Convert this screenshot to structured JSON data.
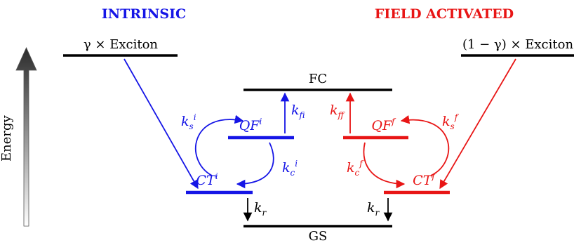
{
  "titles": {
    "intrinsic": "INTRINSIC",
    "field_activated": "FIELD ACTIVATED"
  },
  "levels": {
    "exciton_intrinsic": "γ × Exciton",
    "exciton_field": "(1 − γ) × Exciton",
    "fc": "FC",
    "gs": "GS",
    "energy": "Energy"
  },
  "states": {
    "qf_i": {
      "base": "QF",
      "sup": "i"
    },
    "ct_i": {
      "base": "CT",
      "sup": "i"
    },
    "qf_f": {
      "base": "QF",
      "sup": "f"
    },
    "ct_f": {
      "base": "CT",
      "sup": "f"
    }
  },
  "rates": {
    "ks_i": {
      "base": "k",
      "sub": "s",
      "sup": "i"
    },
    "kf_i": {
      "base": "k",
      "sub": "f",
      "sup": "i"
    },
    "kc_i": {
      "base": "k",
      "sub": "c",
      "sup": "i"
    },
    "ks_f": {
      "base": "k",
      "sub": "s",
      "sup": "f"
    },
    "kf_f": {
      "base": "k",
      "sub": "f",
      "sup": "f"
    },
    "kc_f": {
      "base": "k",
      "sub": "c",
      "sup": "f"
    },
    "kr_left": {
      "base": "k",
      "sub": "r"
    },
    "kr_right": {
      "base": "k",
      "sub": "r"
    }
  },
  "colors": {
    "intrinsic": "#1515e6",
    "field": "#e81515",
    "neutral": "#000000"
  }
}
